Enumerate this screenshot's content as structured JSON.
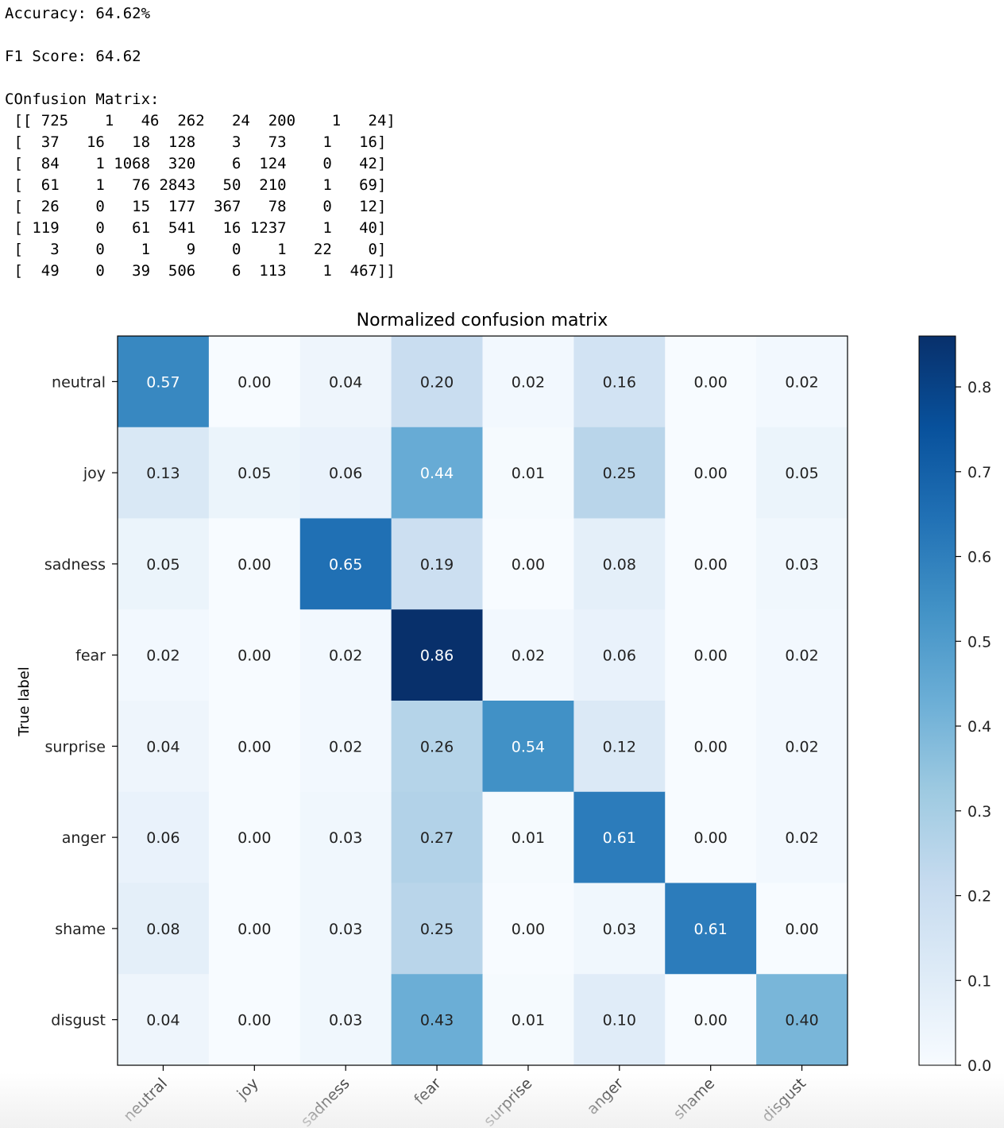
{
  "console": {
    "accuracy_line": "Accuracy: 64.62%",
    "f1_line": "F1 Score: 64.62",
    "cm_header": "COnfusion Matrix:",
    "cm_rows": [
      " [[ 725    1   46  262   24  200    1   24]",
      " [  37   16   18  128    3   73    1   16]",
      " [  84    1 1068  320    6  124    0   42]",
      " [  61    1   76 2843   50  210    1   69]",
      " [  26    0   15  177  367   78    0   12]",
      " [ 119    0   61  541   16 1237    1   40]",
      " [   3    0    1    9    0    1   22    0]",
      " [  49    0   39  506    6  113    1  467]]"
    ]
  },
  "chart_data": {
    "type": "heatmap",
    "title": "Normalized confusion matrix",
    "ylabel": "True label",
    "xlabel": "",
    "x_categories": [
      "neutral",
      "joy",
      "sadness",
      "fear",
      "surprise",
      "anger",
      "shame",
      "disgust"
    ],
    "y_categories": [
      "neutral",
      "joy",
      "sadness",
      "fear",
      "surprise",
      "anger",
      "shame",
      "disgust"
    ],
    "values": [
      [
        0.57,
        0.0,
        0.04,
        0.2,
        0.02,
        0.16,
        0.0,
        0.02
      ],
      [
        0.13,
        0.05,
        0.06,
        0.44,
        0.01,
        0.25,
        0.0,
        0.05
      ],
      [
        0.05,
        0.0,
        0.65,
        0.19,
        0.0,
        0.08,
        0.0,
        0.03
      ],
      [
        0.02,
        0.0,
        0.02,
        0.86,
        0.02,
        0.06,
        0.0,
        0.02
      ],
      [
        0.04,
        0.0,
        0.02,
        0.26,
        0.54,
        0.12,
        0.0,
        0.02
      ],
      [
        0.06,
        0.0,
        0.03,
        0.27,
        0.01,
        0.61,
        0.0,
        0.02
      ],
      [
        0.08,
        0.0,
        0.03,
        0.25,
        0.0,
        0.03,
        0.61,
        0.0
      ],
      [
        0.04,
        0.0,
        0.03,
        0.43,
        0.01,
        0.1,
        0.0,
        0.4
      ]
    ],
    "colormap": "Blues",
    "colorbar": {
      "range": [
        0.0,
        0.86
      ],
      "ticks": [
        "0.0",
        "0.1",
        "0.2",
        "0.3",
        "0.4",
        "0.5",
        "0.6",
        "0.7",
        "0.8"
      ]
    },
    "grid": false
  }
}
